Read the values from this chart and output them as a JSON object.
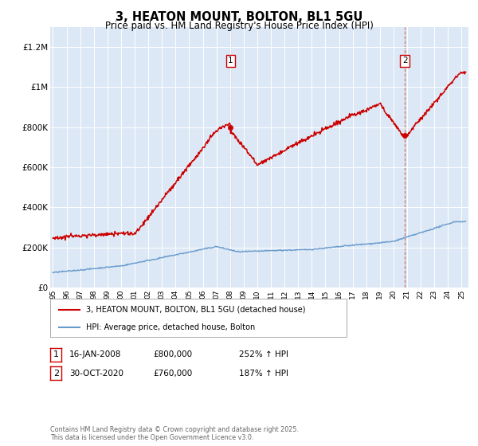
{
  "title": "3, HEATON MOUNT, BOLTON, BL1 5GU",
  "subtitle": "Price paid vs. HM Land Registry's House Price Index (HPI)",
  "ylim": [
    0,
    1300000
  ],
  "yticks": [
    0,
    200000,
    400000,
    600000,
    800000,
    1000000,
    1200000
  ],
  "ytick_labels": [
    "£0",
    "£200K",
    "£400K",
    "£600K",
    "£800K",
    "£1M",
    "£1.2M"
  ],
  "xlim_start": 1994.8,
  "xlim_end": 2025.5,
  "xtick_years": [
    1995,
    1996,
    1997,
    1998,
    1999,
    2000,
    2001,
    2002,
    2003,
    2004,
    2005,
    2006,
    2007,
    2008,
    2009,
    2010,
    2011,
    2012,
    2013,
    2014,
    2015,
    2016,
    2017,
    2018,
    2019,
    2020,
    2021,
    2022,
    2023,
    2024,
    2025
  ],
  "line1_color": "#cc0000",
  "line2_color": "#6699cc",
  "bg_color": "#dce8f5",
  "legend_line1": "3, HEATON MOUNT, BOLTON, BL1 5GU (detached house)",
  "legend_line2": "HPI: Average price, detached house, Bolton",
  "marker1_year": 2008.04,
  "marker1_price": 800000,
  "marker1_label": "1",
  "marker2_year": 2020.83,
  "marker2_price": 760000,
  "marker2_label": "2",
  "footer": "Contains HM Land Registry data © Crown copyright and database right 2025.\nThis data is licensed under the Open Government Licence v3.0."
}
